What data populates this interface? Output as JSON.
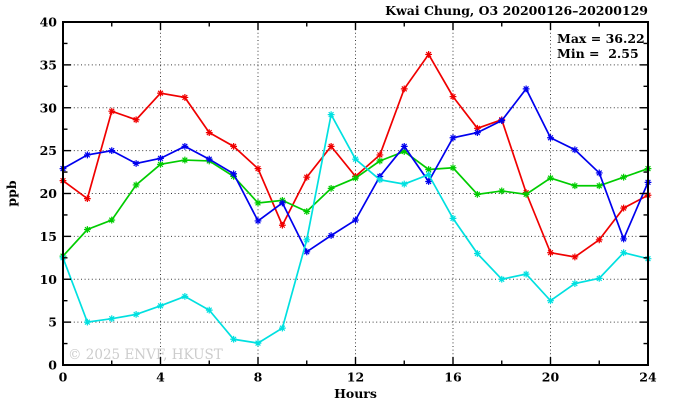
{
  "stats": {
    "max_label": "Max = 36.22",
    "min_label": "Min =  2.55"
  },
  "watermark": "© 2025 ENVF, HKUST",
  "chart_data": {
    "type": "line",
    "title": "Kwai Chung, O3 20200126–20200129",
    "xlabel": "Hours",
    "ylabel": "ppb",
    "xlim": [
      0,
      24
    ],
    "ylim": [
      0,
      40
    ],
    "xticks": [
      0,
      4,
      8,
      12,
      16,
      20,
      24
    ],
    "xtick_minor_step": 2,
    "yticks": [
      0,
      5,
      10,
      15,
      20,
      25,
      30,
      35,
      40
    ],
    "ytick_minor_step": 2.5,
    "grid_x": [
      4,
      8,
      12,
      16,
      20
    ],
    "grid_y": [
      5,
      10,
      15,
      20,
      25,
      30,
      35
    ],
    "legend": "none",
    "annotations": {
      "max": 36.22,
      "min": 2.55
    },
    "x": [
      0,
      1,
      2,
      3,
      4,
      5,
      6,
      7,
      8,
      9,
      10,
      11,
      12,
      13,
      14,
      15,
      16,
      17,
      18,
      19,
      20,
      21,
      22,
      23,
      24
    ],
    "series": [
      {
        "name": "red-series",
        "color": "#f00000",
        "values": [
          21.5,
          19.4,
          29.6,
          28.6,
          31.7,
          31.2,
          27.1,
          25.5,
          22.9,
          16.3,
          21.9,
          25.5,
          22.0,
          24.5,
          32.2,
          36.22,
          31.3,
          27.6,
          28.6,
          20.1,
          13.1,
          12.6,
          14.6,
          18.3,
          19.8
        ]
      },
      {
        "name": "green-series",
        "color": "#00cc00",
        "values": [
          12.7,
          15.8,
          16.9,
          21.0,
          23.4,
          23.9,
          23.8,
          22.0,
          18.9,
          19.2,
          17.9,
          20.6,
          21.8,
          23.8,
          24.9,
          22.8,
          23.0,
          19.9,
          20.3,
          19.9,
          21.8,
          20.9,
          20.9,
          21.9,
          22.9
        ]
      },
      {
        "name": "blue-series",
        "color": "#0000ee",
        "values": [
          22.9,
          24.5,
          25.0,
          23.5,
          24.1,
          25.5,
          24.0,
          22.3,
          16.8,
          18.9,
          13.2,
          15.1,
          16.9,
          22.0,
          25.5,
          21.4,
          26.5,
          27.1,
          28.5,
          32.2,
          26.5,
          25.1,
          22.4,
          14.7,
          21.3
        ]
      },
      {
        "name": "cyan-series",
        "color": "#00e0e0",
        "values": [
          12.5,
          5.0,
          5.4,
          5.9,
          6.9,
          8.0,
          6.4,
          3.0,
          2.55,
          4.3,
          14.6,
          29.2,
          24.0,
          21.6,
          21.1,
          22.2,
          17.1,
          13.0,
          10.0,
          10.6,
          7.5,
          9.5,
          10.1,
          13.1,
          12.4
        ]
      }
    ]
  }
}
